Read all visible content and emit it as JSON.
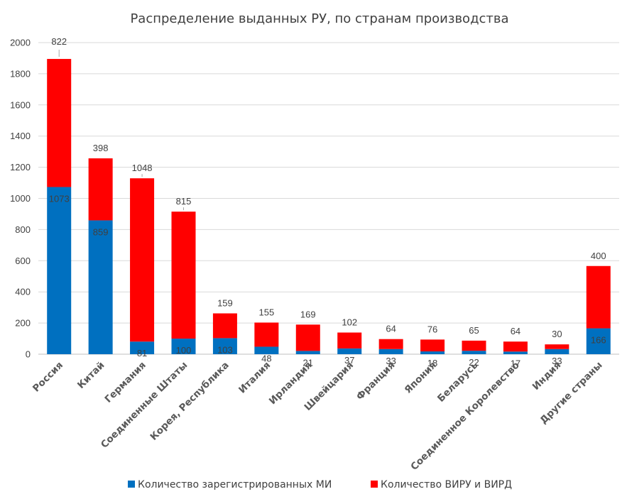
{
  "chart_data": {
    "type": "bar",
    "stacked": true,
    "title": "Распределение выданных РУ, по странам производства",
    "xlabel": "",
    "ylabel": "",
    "ylim": [
      0,
      2000
    ],
    "yticks": [
      "0",
      "200",
      "400",
      "600",
      "800",
      "1000",
      "1200",
      "1400",
      "1600",
      "1800",
      "2000"
    ],
    "grid": true,
    "legend_position": "bottom",
    "categories": [
      "Россия",
      "Китай",
      "Германия",
      "Соединенные Штаты",
      "Корея, Республика",
      "Италия",
      "Ирландия",
      "Швейцария",
      "Франция",
      "Япония",
      "Беларусь",
      "Соединенное Королевство",
      "Индия",
      "Другие страны"
    ],
    "series": [
      {
        "name": "Количество зарегистрированных МИ",
        "color": "#0070C0",
        "values": [
          1073,
          859,
          81,
          100,
          103,
          48,
          21,
          37,
          33,
          18,
          22,
          17,
          33,
          166
        ],
        "labels": [
          "1073",
          "859",
          "81",
          "100",
          "103",
          "48",
          "21",
          "37",
          "33",
          "18",
          "22",
          "17",
          "33",
          "166"
        ]
      },
      {
        "name": "Количество ВИРУ и ВИРД",
        "color": "#FF0000",
        "values": [
          822,
          398,
          1048,
          815,
          159,
          155,
          169,
          102,
          64,
          76,
          65,
          64,
          30,
          400
        ],
        "labels": [
          "822",
          "398",
          "1048",
          "815",
          "159",
          "155",
          "169",
          "102",
          "64",
          "76",
          "65",
          "64",
          "30",
          "400"
        ]
      }
    ]
  }
}
